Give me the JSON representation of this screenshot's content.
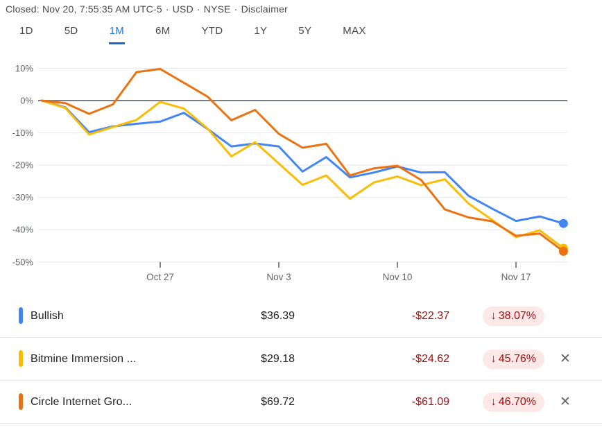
{
  "status": {
    "closed_text": "Closed: Nov 20, 7:55:35 AM UTC-5",
    "sep": "·",
    "currency": "USD",
    "exchange": "NYSE",
    "disclaimer": "Disclaimer"
  },
  "range_tabs": {
    "items": [
      {
        "label": "1D",
        "active": false
      },
      {
        "label": "5D",
        "active": false
      },
      {
        "label": "1M",
        "active": true
      },
      {
        "label": "6M",
        "active": false
      },
      {
        "label": "YTD",
        "active": false
      },
      {
        "label": "1Y",
        "active": false
      },
      {
        "label": "5Y",
        "active": false
      },
      {
        "label": "MAX",
        "active": false
      }
    ]
  },
  "colors": {
    "blue": "#4285f4",
    "yellow": "#fbbc04",
    "orange": "#ec7211",
    "negative_red": "#a50e0e",
    "badge_bg": "#fce8e6",
    "grid": "#e9eaed",
    "zero_line": "#797e82",
    "tick": "#80868b"
  },
  "chart_data": {
    "type": "line",
    "unit": "%",
    "grid": true,
    "ylim": [
      -50,
      10
    ],
    "y_axis": {
      "ticks": [
        10,
        0,
        -10,
        -20,
        -30,
        -40,
        -50
      ]
    },
    "x_axis": {
      "tick_labels": [
        "Oct 27",
        "Nov 3",
        "Nov 10",
        "Nov 17"
      ],
      "tick_indices": [
        5,
        10,
        15,
        20
      ]
    },
    "x_dates": [
      "Oct 20",
      "Oct 21",
      "Oct 22",
      "Oct 23",
      "Oct 24",
      "Oct 27",
      "Oct 28",
      "Oct 29",
      "Oct 30",
      "Oct 31",
      "Nov 3",
      "Nov 4",
      "Nov 5",
      "Nov 6",
      "Nov 7",
      "Nov 10",
      "Nov 11",
      "Nov 12",
      "Nov 13",
      "Nov 14",
      "Nov 17",
      "Nov 18",
      "Nov 19"
    ],
    "series": [
      {
        "name": "Bullish",
        "color": "#4285f4",
        "values": [
          0,
          -2.1,
          -9.8,
          -8.0,
          -7.2,
          -6.5,
          -3.8,
          -8.8,
          -14.2,
          -13.3,
          -14.2,
          -22.0,
          -17.5,
          -23.8,
          -22.3,
          -20.4,
          -22.3,
          -22.2,
          -29.5,
          -33.5,
          -37.3,
          -35.9,
          -38.07
        ]
      },
      {
        "name": "Bitmine Immersion ...",
        "color": "#fbbc04",
        "values": [
          0,
          -2.3,
          -10.5,
          -8.2,
          -6.0,
          -0.4,
          -2.5,
          -8.7,
          -17.3,
          -12.9,
          -19.5,
          -26.1,
          -23.2,
          -30.4,
          -25.4,
          -23.5,
          -26.2,
          -24.4,
          -31.9,
          -37.0,
          -42.3,
          -40.2,
          -45.76
        ]
      },
      {
        "name": "Circle Internet Gro...",
        "color": "#ec7211",
        "values": [
          0,
          -0.8,
          -4.1,
          -1.2,
          8.8,
          9.8,
          5.5,
          1.2,
          -6.1,
          -2.9,
          -10.3,
          -14.6,
          -13.4,
          -23.2,
          -21.0,
          -20.2,
          -24.6,
          -33.7,
          -36.2,
          -37.4,
          -41.9,
          -41.2,
          -46.7
        ]
      }
    ]
  },
  "table": {
    "down_arrow": "↓",
    "close_icon": "✕",
    "rows": [
      {
        "name": "Bullish",
        "color": "#4285f4",
        "price": "$36.39",
        "change": "-$22.37",
        "percent": "38.07%",
        "direction": "down",
        "closable": false
      },
      {
        "name": "Bitmine Immersion ...",
        "color": "#fbbc04",
        "price": "$29.18",
        "change": "-$24.62",
        "percent": "45.76%",
        "direction": "down",
        "closable": true
      },
      {
        "name": "Circle Internet Gro...",
        "color": "#ec7211",
        "price": "$69.72",
        "change": "-$61.09",
        "percent": "46.70%",
        "direction": "down",
        "closable": true
      }
    ]
  }
}
